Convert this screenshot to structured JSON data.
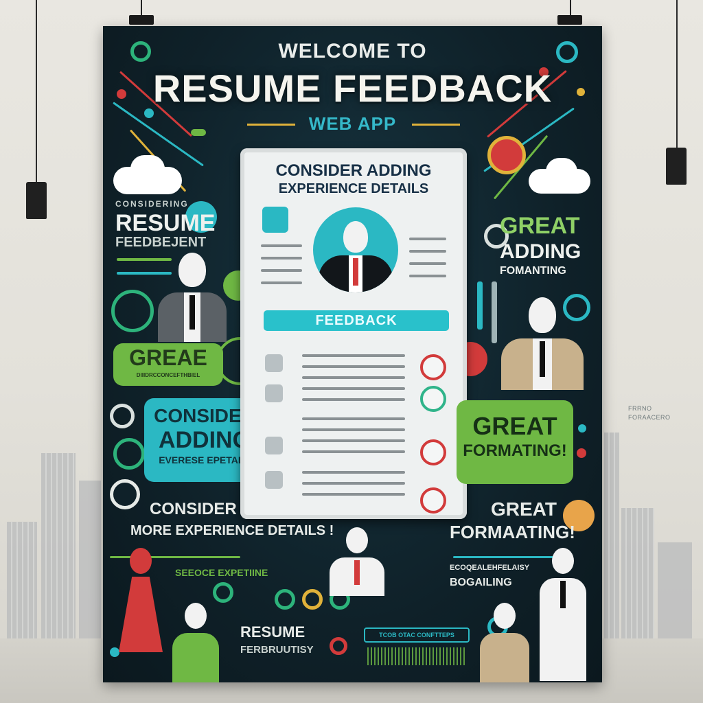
{
  "poster": {
    "welcome": "WELCOME TO",
    "title": "RESUME FEEDBACK",
    "subtitle": "WEB APP",
    "resume_card": {
      "heading_line1": "CONSIDER ADDING",
      "heading_line2": "EXPERIENCE DETAILS",
      "feedback_label": "FEEDBACK"
    },
    "left_block": {
      "small_top": "CONSIDERING",
      "resume": "RESUME",
      "feedback": "FEEDBEJENT"
    },
    "great_bubble": {
      "label": "GREAE",
      "sub": "DIIIDRCCONCEFTHBIEL"
    },
    "consider_bubble": {
      "line1": "CONSIDER",
      "line2": "ADDING",
      "line3": "EVERESE EPETALS"
    },
    "right_block": {
      "great": "GREAT",
      "adding": "ADDING",
      "formatting": "FOMANTING"
    },
    "great_formatting_bubble": {
      "line1": "GREAT",
      "line2": "FORMATING!"
    },
    "bottom_left": {
      "line1": "CONSIDER",
      "line2": "MORE EXPERIENCE DETAILS !"
    },
    "bottom_right": {
      "line1": "GREAT",
      "line2": "FORMAATING!"
    },
    "bottom_strip_left": "SEEOCE EXPETIINE",
    "bottom_strip_right1": "ECOQEALEHFELAISY",
    "bottom_strip_right2": "BOGAILING",
    "bottom_resume": "RESUME",
    "bottom_resume_sub": "FERBRUUTISY",
    "bottom_bar_text": "TCOB OTAC CONFTTEPS"
  },
  "room": {
    "side_note_line1": "FRRNO",
    "side_note_line2": "FORAACERO"
  },
  "colors": {
    "poster_bg": "#0f2129",
    "teal": "#2bb8c3",
    "green": "#6fb844",
    "red": "#d23b3b",
    "gold": "#e0b23a"
  },
  "icons": [
    "person-avatar-icon",
    "chat-bubble-icon",
    "cloud-icon",
    "pen-icon",
    "check-circle-icon"
  ]
}
